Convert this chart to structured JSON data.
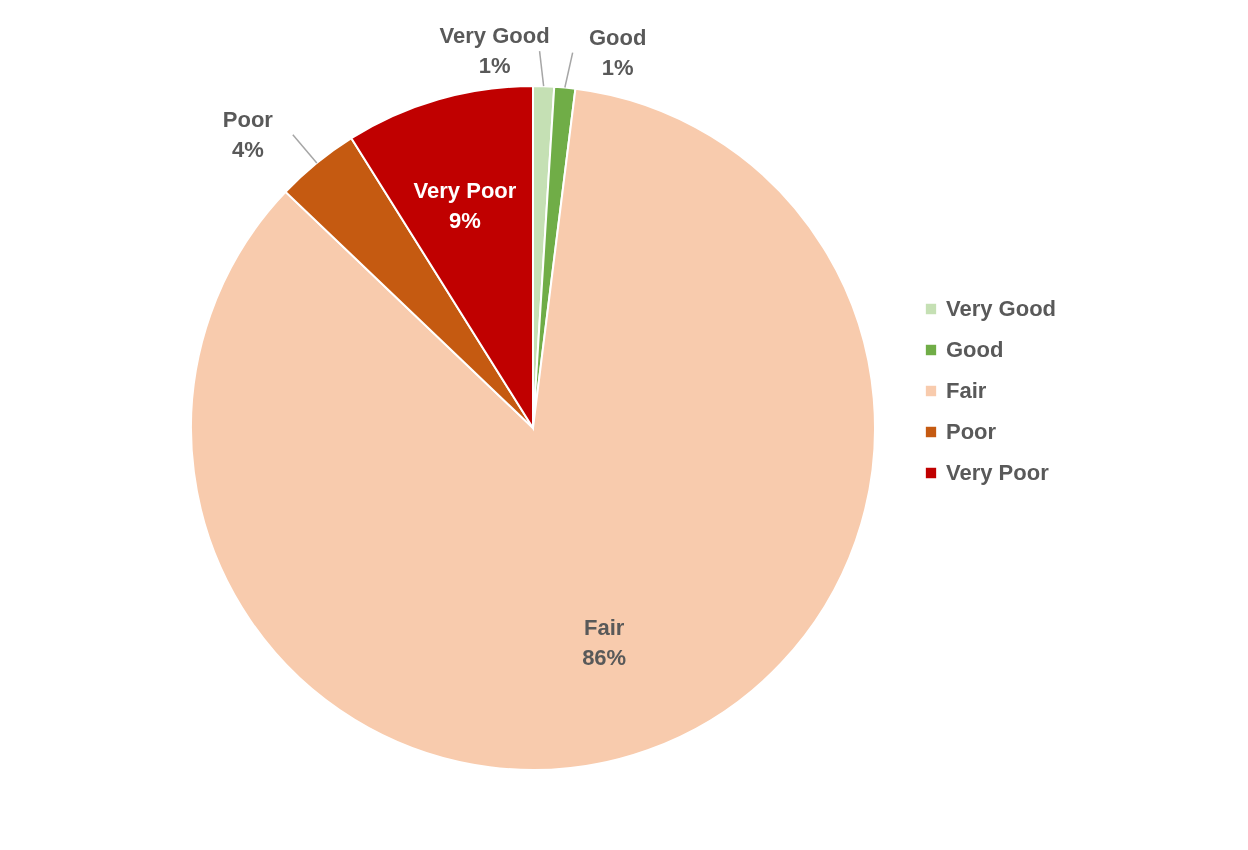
{
  "chart_data": {
    "type": "pie",
    "categories": [
      "Very Good",
      "Good",
      "Fair",
      "Poor",
      "Very Poor"
    ],
    "values": [
      1,
      1,
      86,
      4,
      9
    ],
    "value_labels": [
      "1%",
      "1%",
      "86%",
      "4%",
      "9%"
    ],
    "colors": [
      "#c5e0b4",
      "#70ad47",
      "#f8cbad",
      "#c55a11",
      "#c00000"
    ],
    "legend": "right"
  }
}
